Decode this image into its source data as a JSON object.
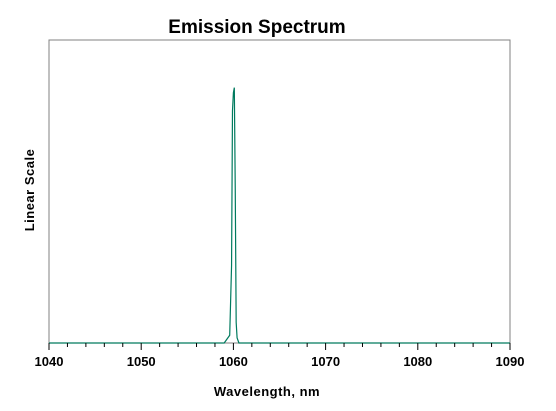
{
  "chart_data": {
    "type": "line",
    "title": "Emission Spectrum",
    "xlabel": "Wavelength, nm",
    "ylabel": "Linear Scale",
    "xlim": [
      1040,
      1090
    ],
    "ylim": [
      0,
      1
    ],
    "x_ticks": [
      "1040",
      "1050",
      "1060",
      "1070",
      "1080",
      "1090"
    ],
    "y_ticks_shown": false,
    "grid": false,
    "legend": "none",
    "series": [
      {
        "color": "#007a5e",
        "x": [
          1040,
          1059.0,
          1059.6,
          1059.8,
          1059.9,
          1060.0,
          1060.1,
          1060.2,
          1060.3,
          1060.4,
          1060.6,
          1061.0,
          1090
        ],
        "y": [
          0.0,
          0.0,
          0.03,
          0.3,
          0.9,
          0.97,
          0.99,
          0.6,
          0.08,
          0.02,
          0.0,
          0.0,
          0.0
        ]
      }
    ]
  }
}
